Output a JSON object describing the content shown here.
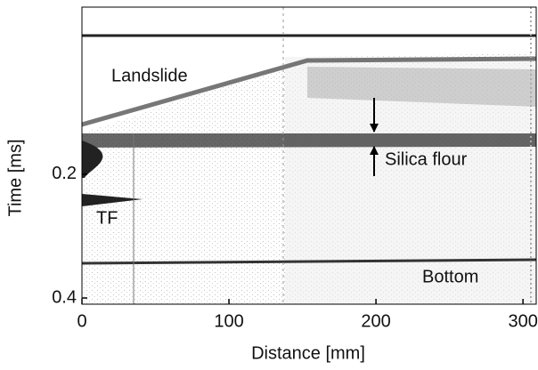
{
  "chart_data": {
    "type": "image",
    "xlabel": "Distance [mm]",
    "ylabel": "Time [ms]",
    "xlim": [
      0,
      309
    ],
    "xticks": [
      0,
      100,
      200,
      300
    ],
    "ylim": [
      -0.07,
      0.41
    ],
    "yticks": [
      0.2,
      0.4
    ],
    "y_inverted": true,
    "annotations": [
      "Landslide",
      "Silica flour",
      "TF",
      "Bottom"
    ]
  }
}
